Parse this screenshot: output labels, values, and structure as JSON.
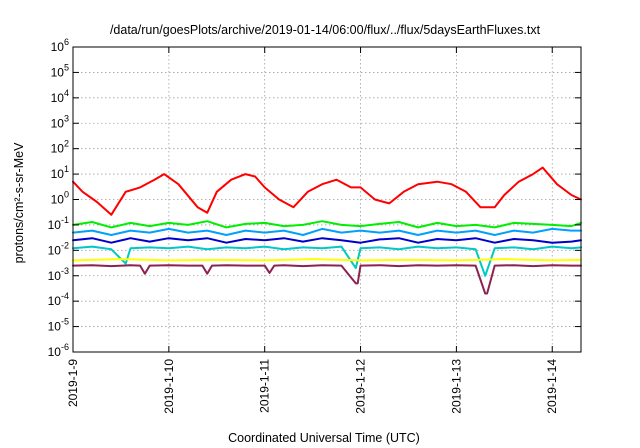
{
  "chart_data": {
    "type": "line",
    "title": "/data/run/goesPlots/archive/2019-01-14/06:00/flux/../flux/5daysEarthFluxes.txt",
    "xlabel": "Coordinated Universal Time (UTC)",
    "ylabel": "protons/cm²-s-sr-MeV",
    "yscale": "log",
    "ylim": [
      1e-06,
      1000000.0
    ],
    "xlim": [
      0,
      5.3
    ],
    "grid": true,
    "x_ticks": [
      {
        "value": 0,
        "label": "2019-1-9"
      },
      {
        "value": 1,
        "label": "2019-1-10"
      },
      {
        "value": 2,
        "label": "2019-1-11"
      },
      {
        "value": 3,
        "label": "2019-1-12"
      },
      {
        "value": 4,
        "label": "2019-1-13"
      },
      {
        "value": 5,
        "label": "2019-1-14"
      }
    ],
    "y_ticks": [
      {
        "value": -6,
        "base": "10",
        "exp": "-6"
      },
      {
        "value": -5,
        "base": "10",
        "exp": "-5"
      },
      {
        "value": -4,
        "base": "10",
        "exp": "-4"
      },
      {
        "value": -3,
        "base": "10",
        "exp": "-3"
      },
      {
        "value": -2,
        "base": "10",
        "exp": "-2"
      },
      {
        "value": -1,
        "base": "10",
        "exp": "-1"
      },
      {
        "value": 0,
        "base": "10",
        "exp": "0"
      },
      {
        "value": 1,
        "base": "10",
        "exp": "1"
      },
      {
        "value": 2,
        "base": "10",
        "exp": "2"
      },
      {
        "value": 3,
        "base": "10",
        "exp": "3"
      },
      {
        "value": 4,
        "base": "10",
        "exp": "4"
      },
      {
        "value": 5,
        "base": "10",
        "exp": "5"
      },
      {
        "value": 6,
        "base": "10",
        "exp": "6"
      }
    ],
    "series": [
      {
        "color": "#ff0000",
        "x": [
          0,
          0.1,
          0.25,
          0.4,
          0.55,
          0.7,
          0.85,
          0.95,
          1.1,
          1.3,
          1.4,
          1.5,
          1.65,
          1.8,
          1.9,
          2.0,
          2.15,
          2.3,
          2.45,
          2.6,
          2.75,
          2.9,
          3.0,
          3.15,
          3.3,
          3.45,
          3.6,
          3.8,
          3.95,
          4.1,
          4.25,
          4.4,
          4.5,
          4.65,
          4.8,
          4.9,
          5.05,
          5.2,
          5.3
        ],
        "y": [
          5,
          2,
          0.8,
          0.25,
          2,
          3,
          6,
          10,
          4,
          0.5,
          0.3,
          2,
          6,
          10,
          8,
          3,
          1,
          0.5,
          2,
          4,
          6,
          3,
          3,
          1,
          0.7,
          2,
          4,
          5,
          4,
          2,
          0.5,
          0.5,
          1.5,
          5,
          10,
          18,
          4,
          1.5,
          1
        ]
      },
      {
        "color": "#00ee00",
        "x": [
          0,
          0.2,
          0.4,
          0.6,
          0.8,
          1.0,
          1.2,
          1.4,
          1.6,
          1.8,
          2.0,
          2.2,
          2.4,
          2.6,
          2.8,
          3.0,
          3.2,
          3.4,
          3.6,
          3.8,
          4.0,
          4.2,
          4.4,
          4.6,
          4.8,
          5.0,
          5.2,
          5.3
        ],
        "y": [
          0.1,
          0.13,
          0.08,
          0.12,
          0.09,
          0.12,
          0.1,
          0.14,
          0.08,
          0.11,
          0.12,
          0.09,
          0.1,
          0.14,
          0.1,
          0.09,
          0.11,
          0.13,
          0.08,
          0.12,
          0.09,
          0.1,
          0.08,
          0.12,
          0.11,
          0.1,
          0.09,
          0.12
        ]
      },
      {
        "color": "#00a0ff",
        "x": [
          0,
          0.2,
          0.4,
          0.6,
          0.8,
          1.0,
          1.2,
          1.4,
          1.6,
          1.8,
          2.0,
          2.2,
          2.4,
          2.6,
          2.8,
          3.0,
          3.2,
          3.4,
          3.6,
          3.8,
          4.0,
          4.2,
          4.4,
          4.6,
          4.8,
          5.0,
          5.2,
          5.3
        ],
        "y": [
          0.05,
          0.06,
          0.04,
          0.06,
          0.05,
          0.07,
          0.05,
          0.06,
          0.04,
          0.06,
          0.05,
          0.06,
          0.04,
          0.07,
          0.05,
          0.06,
          0.05,
          0.06,
          0.04,
          0.06,
          0.05,
          0.06,
          0.04,
          0.06,
          0.05,
          0.07,
          0.06,
          0.06
        ]
      },
      {
        "color": "#0000cc",
        "x": [
          0,
          0.2,
          0.4,
          0.6,
          0.8,
          1.0,
          1.2,
          1.4,
          1.6,
          1.8,
          2.0,
          2.2,
          2.4,
          2.6,
          2.8,
          3.0,
          3.2,
          3.4,
          3.6,
          3.8,
          4.0,
          4.2,
          4.4,
          4.6,
          4.8,
          5.0,
          5.2,
          5.3
        ],
        "y": [
          0.025,
          0.03,
          0.02,
          0.03,
          0.022,
          0.03,
          0.025,
          0.03,
          0.02,
          0.028,
          0.025,
          0.03,
          0.022,
          0.03,
          0.025,
          0.02,
          0.027,
          0.03,
          0.02,
          0.028,
          0.025,
          0.03,
          0.02,
          0.028,
          0.025,
          0.02,
          0.022,
          0.025
        ]
      },
      {
        "color": "#00c8c8",
        "x": [
          0,
          0.2,
          0.4,
          0.55,
          0.6,
          0.8,
          1.0,
          1.2,
          1.4,
          1.6,
          1.8,
          2.0,
          2.2,
          2.4,
          2.6,
          2.8,
          2.95,
          3.0,
          3.2,
          3.4,
          3.6,
          3.8,
          4.0,
          4.2,
          4.3,
          4.4,
          4.6,
          4.8,
          5.0,
          5.2,
          5.3
        ],
        "y": [
          0.012,
          0.014,
          0.011,
          0.003,
          0.012,
          0.013,
          0.012,
          0.014,
          0.011,
          0.013,
          0.012,
          0.014,
          0.011,
          0.013,
          0.012,
          0.014,
          0.002,
          0.012,
          0.013,
          0.011,
          0.014,
          0.012,
          0.013,
          0.011,
          0.001,
          0.012,
          0.013,
          0.011,
          0.014,
          0.012,
          0.013
        ]
      },
      {
        "color": "#ffff00",
        "x": [
          0,
          0.5,
          1.0,
          1.5,
          2.0,
          2.5,
          3.0,
          3.5,
          4.0,
          4.5,
          5.0,
          5.3
        ],
        "y": [
          0.004,
          0.0045,
          0.004,
          0.0042,
          0.004,
          0.0045,
          0.004,
          0.0042,
          0.004,
          0.0045,
          0.004,
          0.0042
        ]
      },
      {
        "color": "#8b2252",
        "x": [
          0,
          0.2,
          0.4,
          0.6,
          0.7,
          0.75,
          0.8,
          1.0,
          1.2,
          1.35,
          1.4,
          1.45,
          1.6,
          1.8,
          2.0,
          2.05,
          2.1,
          2.2,
          2.4,
          2.6,
          2.8,
          2.95,
          2.97,
          3.0,
          3.2,
          3.4,
          3.6,
          3.8,
          4.0,
          4.2,
          4.3,
          4.32,
          4.4,
          4.6,
          4.8,
          5.0,
          5.2,
          5.3
        ],
        "y": [
          0.0025,
          0.0026,
          0.0024,
          0.0026,
          0.0025,
          0.0012,
          0.0025,
          0.0026,
          0.0025,
          0.0025,
          0.0012,
          0.0025,
          0.0026,
          0.0025,
          0.0025,
          0.0013,
          0.0025,
          0.0026,
          0.0024,
          0.0026,
          0.0025,
          0.0005,
          0.0005,
          0.0025,
          0.0026,
          0.0024,
          0.0026,
          0.0025,
          0.0026,
          0.0025,
          0.0002,
          0.0002,
          0.0025,
          0.0026,
          0.0024,
          0.0026,
          0.0025,
          0.0025
        ]
      }
    ]
  }
}
